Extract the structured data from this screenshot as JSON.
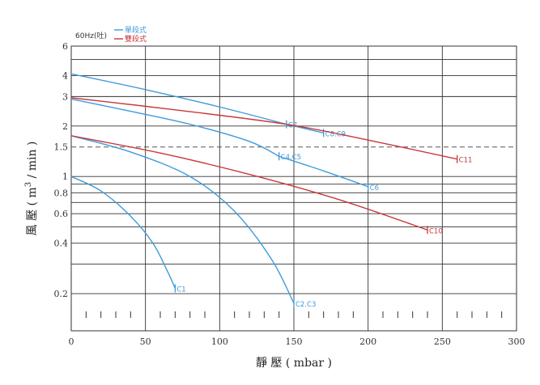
{
  "chart_data": {
    "type": "line",
    "xlabel": "靜 壓 ( mbar )",
    "ylabel": "風 壓 ( m³ / min )",
    "ylabel_parts": {
      "before": "風 壓 ( m",
      "sup": "3",
      "after": " / min )"
    },
    "x_ticks": [
      0,
      50,
      100,
      150,
      200,
      250,
      300
    ],
    "x_tick_labels": [
      "0",
      "50",
      "100",
      "150",
      "200",
      "250",
      "300"
    ],
    "y_ticks": [
      0.2,
      0.4,
      0.6,
      0.8,
      1,
      1.5,
      2,
      3,
      4,
      6
    ],
    "y_tick_labels": [
      "0.2",
      "0.4",
      "0.6",
      "0.8",
      "1",
      "1.5",
      "2",
      "3",
      "4",
      "6"
    ],
    "xlim": [
      0,
      300
    ],
    "ylim": [
      0.12,
      6
    ],
    "y_scale": "log",
    "grid": true,
    "reference_line": {
      "y": 1.5,
      "style": "dashed"
    },
    "legend": {
      "title": "60Hz(吐)",
      "entries": [
        {
          "label": "單段式",
          "color": "#3f9bd8"
        },
        {
          "label": "雙段式",
          "color": "#c8383c"
        }
      ],
      "placement": "top-left"
    },
    "colors": {
      "single": "#3f9bd8",
      "double": "#c8383c",
      "grid": "#333333"
    },
    "series": [
      {
        "id": "c1",
        "label": "C1",
        "kind": "single",
        "end_x": 70,
        "end_y": 0.215,
        "points": [
          [
            0,
            1.0
          ],
          [
            20,
            0.82
          ],
          [
            40,
            0.58
          ],
          [
            55,
            0.4
          ],
          [
            65,
            0.27
          ],
          [
            70,
            0.215
          ]
        ]
      },
      {
        "id": "c2c3",
        "label": "C2.C3",
        "kind": "single",
        "end_x": 150,
        "end_y": 0.175,
        "points": [
          [
            0,
            1.75
          ],
          [
            40,
            1.4
          ],
          [
            80,
            1.0
          ],
          [
            110,
            0.62
          ],
          [
            135,
            0.32
          ],
          [
            150,
            0.175
          ]
        ]
      },
      {
        "id": "c4c5",
        "label": "C4.C5",
        "kind": "single",
        "end_x": 140,
        "end_y": 1.32,
        "points": [
          [
            0,
            2.9
          ],
          [
            40,
            2.45
          ],
          [
            80,
            2.05
          ],
          [
            120,
            1.62
          ],
          [
            140,
            1.32
          ]
        ]
      },
      {
        "id": "c6",
        "label": "C6",
        "kind": "single",
        "end_x": 200,
        "end_y": 0.87,
        "points": [
          [
            140,
            1.32
          ],
          [
            170,
            1.08
          ],
          [
            200,
            0.87
          ]
        ]
      },
      {
        "id": "c7",
        "label": "C7",
        "kind": "single",
        "end_x": 145,
        "end_y": 2.05,
        "points": [
          [
            0,
            4.1
          ],
          [
            50,
            3.3
          ],
          [
            100,
            2.6
          ],
          [
            145,
            2.05
          ]
        ]
      },
      {
        "id": "c8c9",
        "label": "C8.C9",
        "kind": "single",
        "end_x": 170,
        "end_y": 1.82,
        "points": [
          [
            145,
            2.05
          ],
          [
            170,
            1.82
          ]
        ]
      },
      {
        "id": "c10",
        "label": "C10",
        "kind": "double",
        "end_x": 240,
        "end_y": 0.48,
        "points": [
          [
            0,
            1.75
          ],
          [
            60,
            1.38
          ],
          [
            120,
            1.03
          ],
          [
            180,
            0.73
          ],
          [
            240,
            0.48
          ]
        ]
      },
      {
        "id": "c11",
        "label": "C11",
        "kind": "double",
        "end_x": 260,
        "end_y": 1.27,
        "points": [
          [
            0,
            2.95
          ],
          [
            70,
            2.5
          ],
          [
            145,
            2.05
          ],
          [
            200,
            1.65
          ],
          [
            260,
            1.27
          ]
        ]
      }
    ]
  }
}
